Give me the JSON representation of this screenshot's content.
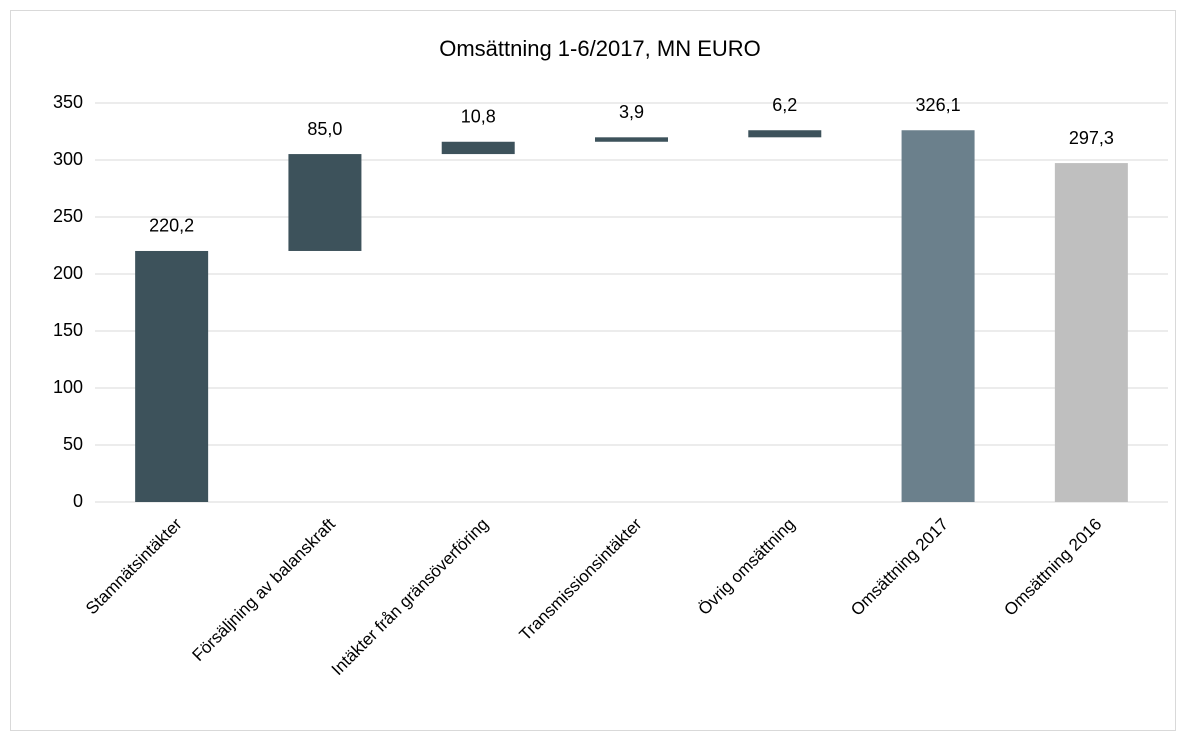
{
  "chart_data": {
    "type": "waterfall",
    "title": "Omsättning 1-6/2017, MN EURO",
    "categories": [
      "Stamnätsintäkter",
      "Försäljning av balanskraft",
      "Intäkter från gränsöverföring",
      "Transmissionsintäkter",
      "Övrig omsättning",
      "Omsättning 2017",
      "Omsättning 2016"
    ],
    "values": [
      220.2,
      85.0,
      10.8,
      3.9,
      6.2,
      326.1,
      297.3
    ],
    "value_labels": [
      "220,2",
      "85,0",
      "10,8",
      "3,9",
      "6,2",
      "326,1",
      "297,3"
    ],
    "measure": [
      "relative",
      "relative",
      "relative",
      "relative",
      "relative",
      "absolute",
      "absolute"
    ],
    "colors": [
      "#3d525b",
      "#3d525b",
      "#3d525b",
      "#3d525b",
      "#3d525b",
      "#6b808c",
      "#bfbfbf"
    ],
    "ylim": [
      0,
      350
    ],
    "yticks": [
      0,
      50,
      100,
      150,
      200,
      250,
      300,
      350
    ],
    "grid": true
  }
}
